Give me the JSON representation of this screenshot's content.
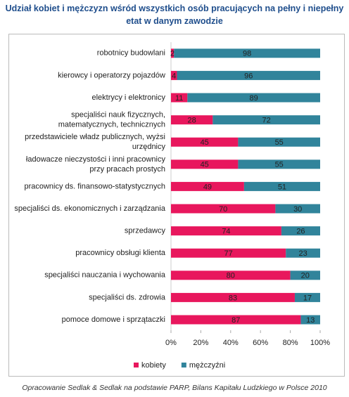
{
  "chart_data": {
    "type": "stacked-bar-horizontal",
    "title": "Udział kobiet i mężczyzn wśród wszystkich osób pracujących na pełny i niepełny etat w danym zawodzie",
    "categories": [
      "robotnicy budowlani",
      "kierowcy i operatorzy pojazdów",
      "elektrycy i elektronicy",
      "specjaliści nauk fizycznych,\nmatematycznych, technicznych",
      "przedstawiciele władz publicznych, wyżsi\nurzędnicy",
      "ładowacze nieczystości i inni pracownicy\nprzy pracach prostych",
      "pracownicy ds. finansowo-statystycznych",
      "specjaliści ds. ekonomicznych i zarządzania",
      "sprzedawcy",
      "pracownicy obsługi klienta",
      "specjaliści nauczania i wychowania",
      "specjaliści ds. zdrowia",
      "pomoce domowe i sprzątaczki"
    ],
    "series": [
      {
        "name": "kobiety",
        "color": "#e8175d",
        "values": [
          2,
          4,
          11,
          28,
          45,
          45,
          49,
          70,
          74,
          77,
          80,
          83,
          87
        ]
      },
      {
        "name": "mężczyźni",
        "color": "#31849b",
        "values": [
          98,
          96,
          89,
          72,
          55,
          55,
          51,
          30,
          26,
          23,
          20,
          17,
          13
        ]
      }
    ],
    "xlim": [
      0,
      100
    ],
    "xticks": [
      {
        "value": 0,
        "label": "0%"
      },
      {
        "value": 20,
        "label": "20%"
      },
      {
        "value": 40,
        "label": "40%"
      },
      {
        "value": 60,
        "label": "60%"
      },
      {
        "value": 80,
        "label": "80%"
      },
      {
        "value": 100,
        "label": "100%"
      }
    ],
    "source": "Opracowanie Sedlak & Sedlak na podstawie PARP, Bilans Kapitału Ludzkiego w Polsce 2010"
  }
}
